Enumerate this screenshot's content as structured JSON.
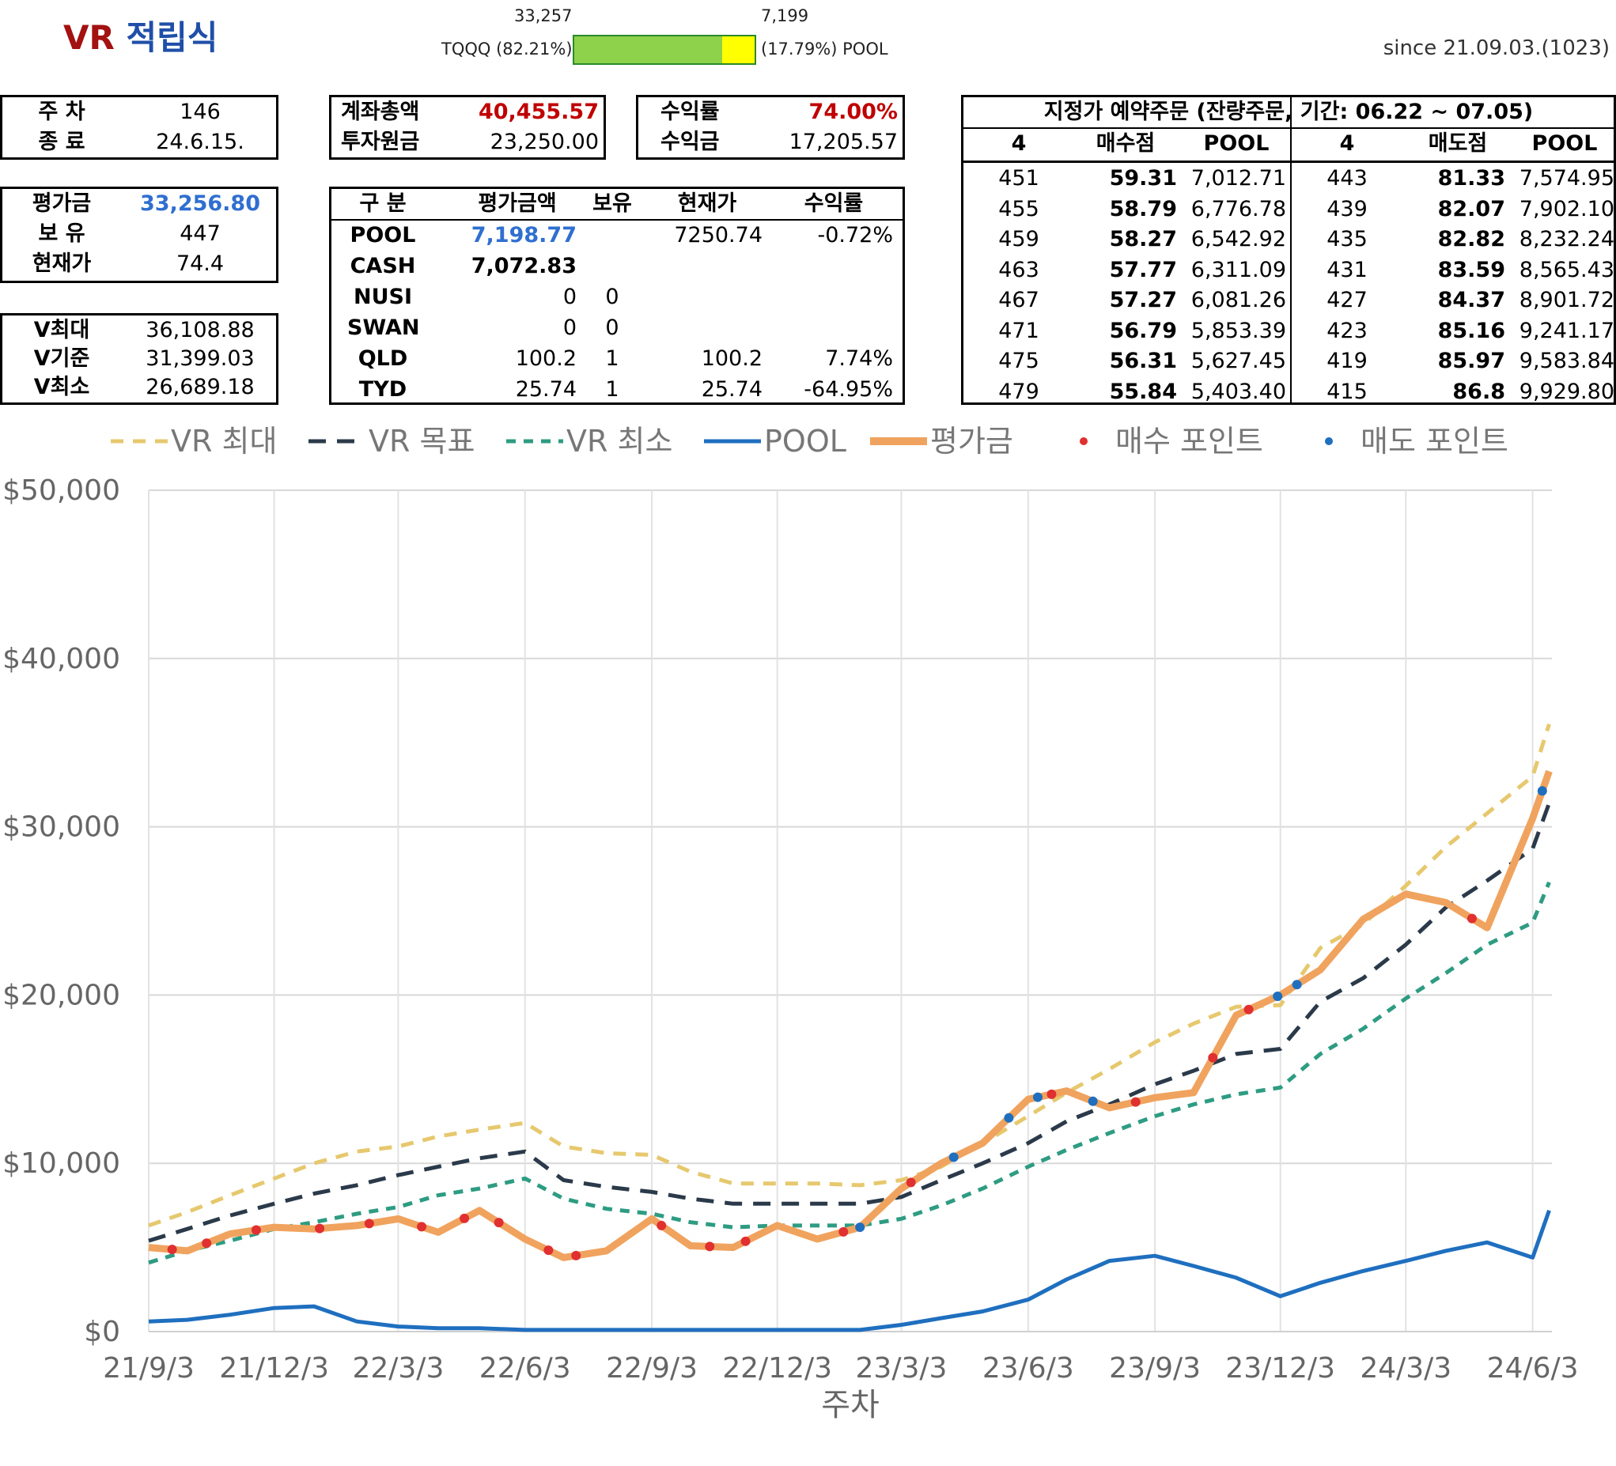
{
  "header": {
    "title_vr": "VR",
    "title_ko": "적립식",
    "since": "since 21.09.03.(1023)",
    "alloc": {
      "left_top": "33,257",
      "right_top": "7,199",
      "left_label": "TQQQ (82.21%)",
      "right_label": "(17.79%) POOL",
      "left_pct": 82.21,
      "right_pct": 17.79
    }
  },
  "week_box": {
    "rows": [
      {
        "label": "주 차",
        "value": "146"
      },
      {
        "label": "종 료",
        "value": "24.6.15."
      }
    ]
  },
  "eval_box": {
    "rows": [
      {
        "label": "평가금",
        "value": "33,256.80"
      },
      {
        "label": "보 유",
        "value": "447"
      },
      {
        "label": "현재가",
        "value": "74.4"
      }
    ]
  },
  "v_box": {
    "rows": [
      {
        "label": "V최대",
        "value": "36,108.88"
      },
      {
        "label": "V기준",
        "value": "31,399.03"
      },
      {
        "label": "V최소",
        "value": "26,689.18"
      }
    ]
  },
  "account_box": {
    "rows": [
      {
        "label": "계좌총액",
        "value": "40,455.57"
      },
      {
        "label": "투자원금",
        "value": "23,250.00"
      }
    ]
  },
  "profit_box": {
    "rows": [
      {
        "label": "수익률",
        "value": "74.00%"
      },
      {
        "label": "수익금",
        "value": "17,205.57"
      }
    ]
  },
  "holdings": {
    "headers": [
      "구 분",
      "평가금액",
      "보유",
      "현재가",
      "수익률"
    ],
    "rows": [
      [
        "POOL",
        "7,198.77",
        "",
        "7250.74",
        "-0.72%"
      ],
      [
        "CASH",
        "7,072.83",
        "",
        "",
        ""
      ],
      [
        "NUSI",
        "0",
        "0",
        "",
        ""
      ],
      [
        "SWAN",
        "0",
        "0",
        "",
        ""
      ],
      [
        "QLD",
        "100.2",
        "1",
        "100.2",
        "7.74%"
      ],
      [
        "TYD",
        "25.74",
        "1",
        "25.74",
        "-64.95%"
      ]
    ]
  },
  "orders": {
    "title": "지정가 예약주문 (잔량주문, 기간: 06.22 ~ 07.05)",
    "headers": [
      "4",
      "매수점",
      "POOL",
      "4",
      "매도점",
      "POOL"
    ],
    "rows": [
      [
        "451",
        "59.31",
        "7,012.71",
        "443",
        "81.33",
        "7,574.95"
      ],
      [
        "455",
        "58.79",
        "6,776.78",
        "439",
        "82.07",
        "7,902.10"
      ],
      [
        "459",
        "58.27",
        "6,542.92",
        "435",
        "82.82",
        "8,232.24"
      ],
      [
        "463",
        "57.77",
        "6,311.09",
        "431",
        "83.59",
        "8,565.43"
      ],
      [
        "467",
        "57.27",
        "6,081.26",
        "427",
        "84.37",
        "8,901.72"
      ],
      [
        "471",
        "56.79",
        "5,853.39",
        "423",
        "85.16",
        "9,241.17"
      ],
      [
        "475",
        "56.31",
        "5,627.45",
        "419",
        "85.97",
        "9,583.84"
      ],
      [
        "479",
        "55.84",
        "5,403.40",
        "415",
        "86.8",
        "9,929.80"
      ]
    ]
  },
  "colors": {
    "vr_max": "#e6c86e",
    "vr_target": "#2b3a4a",
    "vr_min": "#2e9c82",
    "pool": "#1f6fbf",
    "eval": "#f0a35e",
    "buy_point": "#e03030",
    "sell_point": "#1f6fbf"
  },
  "chart_data": {
    "type": "line",
    "title": "",
    "xlabel": "주차",
    "ylabel": "",
    "ylim": [
      0,
      50000
    ],
    "y_ticks": [
      "$0",
      "$10,000",
      "$20,000",
      "$30,000",
      "$40,000",
      "$50,000"
    ],
    "x_ticks": [
      "21/9/3",
      "21/12/3",
      "22/3/3",
      "22/6/3",
      "22/9/3",
      "22/12/3",
      "23/3/3",
      "23/6/3",
      "23/9/3",
      "23/12/3",
      "24/3/3",
      "24/6/3"
    ],
    "x_dates": [
      "2021-09-03",
      "2021-10-01",
      "2021-11-01",
      "2021-12-03",
      "2022-01-01",
      "2022-02-01",
      "2022-03-03",
      "2022-04-01",
      "2022-05-01",
      "2022-06-03",
      "2022-07-01",
      "2022-08-01",
      "2022-09-03",
      "2022-10-01",
      "2022-11-01",
      "2022-12-03",
      "2023-01-01",
      "2023-02-01",
      "2023-03-03",
      "2023-04-01",
      "2023-05-01",
      "2023-06-03",
      "2023-07-01",
      "2023-08-01",
      "2023-09-03",
      "2023-10-01",
      "2023-11-01",
      "2023-12-03",
      "2024-01-01",
      "2024-02-01",
      "2024-03-03",
      "2024-04-01",
      "2024-05-01",
      "2024-06-03",
      "2024-06-15"
    ],
    "series": [
      {
        "name": "VR 최대",
        "style": "dash-light",
        "values": [
          6300,
          7100,
          8100,
          9100,
          10000,
          10700,
          11000,
          11600,
          12000,
          12400,
          11000,
          10600,
          10500,
          9500,
          8800,
          8800,
          8800,
          8700,
          9000,
          9800,
          11200,
          12800,
          14200,
          15600,
          17200,
          18300,
          19300,
          19400,
          22800,
          24200,
          26500,
          28800,
          30800,
          33000,
          36100
        ]
      },
      {
        "name": "VR 목표",
        "style": "dash-dark",
        "values": [
          5400,
          6100,
          6900,
          7600,
          8200,
          8700,
          9300,
          9800,
          10300,
          10700,
          9000,
          8600,
          8300,
          7900,
          7600,
          7600,
          7600,
          7600,
          8000,
          9000,
          10000,
          11200,
          12500,
          13500,
          14700,
          15500,
          16500,
          16800,
          19600,
          21000,
          23000,
          25200,
          26800,
          28700,
          31400
        ]
      },
      {
        "name": "VR 최소",
        "style": "dash-teal",
        "values": [
          4100,
          4800,
          5400,
          6100,
          6500,
          7000,
          7400,
          8100,
          8500,
          9100,
          7900,
          7300,
          7000,
          6500,
          6200,
          6300,
          6300,
          6300,
          6700,
          7500,
          8500,
          9800,
          10800,
          11800,
          12800,
          13500,
          14100,
          14500,
          16500,
          18000,
          19800,
          21300,
          23000,
          24300,
          26700
        ]
      },
      {
        "name": "POOL",
        "style": "solid-blue",
        "values": [
          600,
          700,
          1000,
          1400,
          1500,
          600,
          300,
          200,
          200,
          100,
          100,
          100,
          100,
          100,
          100,
          100,
          100,
          100,
          400,
          800,
          1200,
          1900,
          3100,
          4200,
          4500,
          3900,
          3200,
          2100,
          2900,
          3600,
          4200,
          4800,
          5300,
          4400,
          7200
        ]
      },
      {
        "name": "평가금",
        "style": "solid-orange",
        "values": [
          5000,
          4800,
          5800,
          6200,
          6100,
          6300,
          6700,
          5900,
          7200,
          5500,
          4400,
          4800,
          6700,
          5100,
          5000,
          6300,
          5500,
          6200,
          8500,
          10000,
          11200,
          13800,
          14300,
          13300,
          13900,
          14200,
          18800,
          20000,
          21500,
          24500,
          26000,
          25500,
          24000,
          30500,
          33300
        ]
      }
    ],
    "buy_points_dates": [
      "2021-09-20",
      "2021-10-15",
      "2021-11-20",
      "2022-01-05",
      "2022-02-10",
      "2022-03-20",
      "2022-04-20",
      "2022-05-15",
      "2022-06-20",
      "2022-07-10",
      "2022-09-10",
      "2022-10-15",
      "2022-11-10",
      "2023-01-20",
      "2023-03-10",
      "2023-06-20",
      "2023-08-20",
      "2023-10-15",
      "2023-11-10",
      "2024-04-20"
    ],
    "sell_points_dates": [
      "2023-02-01",
      "2023-04-10",
      "2023-05-20",
      "2023-06-10",
      "2023-07-20",
      "2023-12-01",
      "2023-12-15",
      "2024-06-10"
    ]
  },
  "legend": {
    "items": [
      {
        "label": "VR 최대",
        "kind": "dash-light"
      },
      {
        "label": "VR 목표",
        "kind": "dash-dark"
      },
      {
        "label": "VR 최소",
        "kind": "dash-teal"
      },
      {
        "label": "POOL",
        "kind": "solid-blue"
      },
      {
        "label": "평가금",
        "kind": "solid-orange"
      },
      {
        "label": "매수 포인트",
        "kind": "dot-red"
      },
      {
        "label": "매도 포인트",
        "kind": "dot-blue"
      }
    ]
  }
}
